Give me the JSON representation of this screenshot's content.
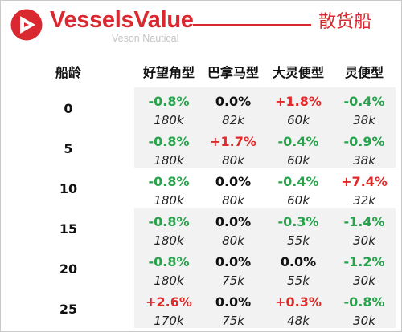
{
  "header": {
    "brand": "VesselsValue",
    "sub_brand": "Veson Nautical",
    "title": "散货船"
  },
  "table": {
    "age_header": "船龄",
    "columns": [
      "好望角型",
      "巴拿马型",
      "大灵便型",
      "灵便型"
    ],
    "rows": [
      {
        "age": "0",
        "pct": [
          "-0.8%",
          "0.0%",
          "+1.8%",
          "-0.4%"
        ],
        "val": [
          "180k",
          "82k",
          "60k",
          "38k"
        ]
      },
      {
        "age": "5",
        "pct": [
          "-0.8%",
          "+1.7%",
          "-0.4%",
          "-0.9%"
        ],
        "val": [
          "180k",
          "80k",
          "60k",
          "38k"
        ]
      },
      {
        "age": "10",
        "pct": [
          "-0.8%",
          "0.0%",
          "-0.4%",
          "+7.4%"
        ],
        "val": [
          "180k",
          "80k",
          "60k",
          "32k"
        ]
      },
      {
        "age": "15",
        "pct": [
          "-0.8%",
          "0.0%",
          "-0.3%",
          "-1.4%"
        ],
        "val": [
          "180k",
          "80k",
          "55k",
          "30k"
        ]
      },
      {
        "age": "20",
        "pct": [
          "-0.8%",
          "0.0%",
          "0.0%",
          "-1.2%"
        ],
        "val": [
          "180k",
          "75k",
          "55k",
          "30k"
        ]
      },
      {
        "age": "25",
        "pct": [
          "+2.6%",
          "0.0%",
          "+0.3%",
          "-0.8%"
        ],
        "val": [
          "170k",
          "75k",
          "48k",
          "30k"
        ]
      }
    ]
  },
  "colors": {
    "brand_red": "#d9282f",
    "negative_green": "#27a34b",
    "positive_red": "#e02a2a"
  }
}
